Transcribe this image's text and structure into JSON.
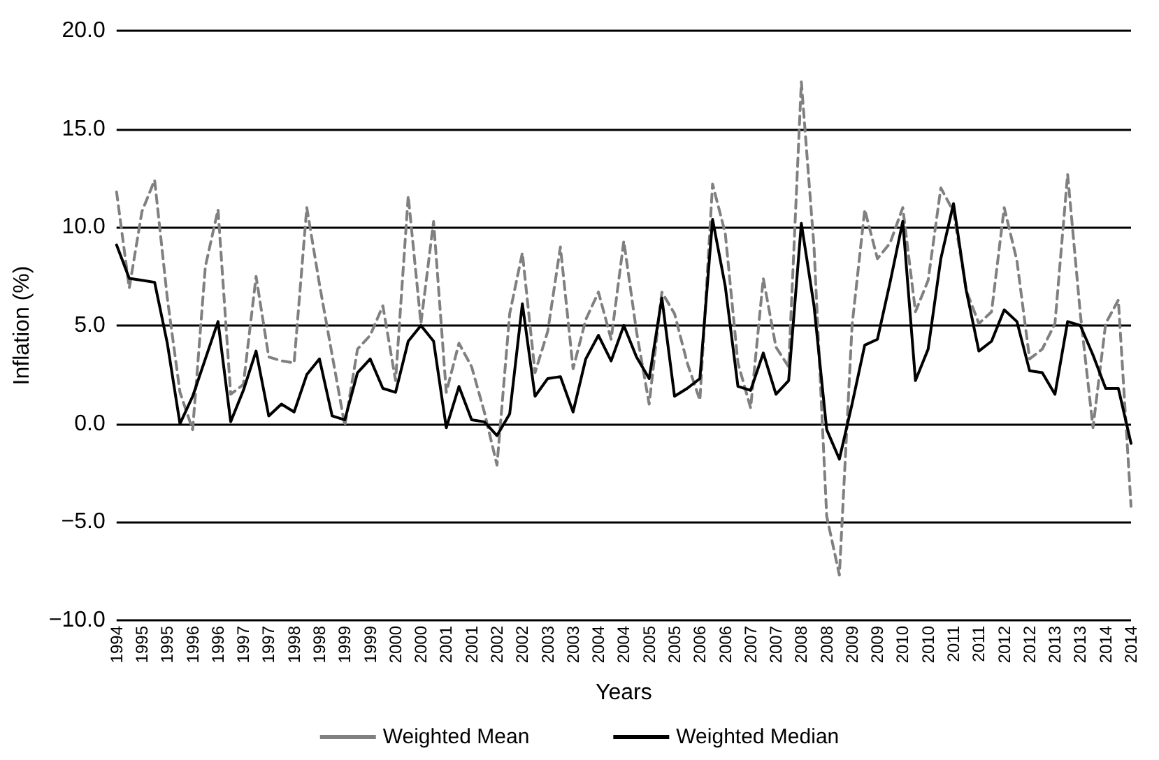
{
  "chart_data": {
    "type": "line",
    "xlabel": "Years",
    "ylabel": "Inflation (%)",
    "categories": [
      "1994",
      null,
      "1995",
      null,
      "1995",
      null,
      "1996",
      null,
      "1996",
      null,
      "1997",
      null,
      "1997",
      null,
      "1998",
      null,
      "1998",
      null,
      "1999",
      null,
      "1999",
      null,
      "2000",
      null,
      "2000",
      null,
      "2001",
      null,
      "2001",
      null,
      "2002",
      null,
      "2002",
      null,
      "2003",
      null,
      "2003",
      null,
      "2004",
      null,
      "2004",
      null,
      "2005",
      null,
      "2005",
      null,
      "2006",
      null,
      "2006",
      null,
      "2007",
      null,
      "2007",
      null,
      "2008",
      null,
      "2008",
      null,
      "2009",
      null,
      "2009",
      null,
      "2010",
      null,
      "2010",
      null,
      "2011",
      null,
      "2011",
      null,
      "2012",
      null,
      "2012",
      null,
      "2013",
      null,
      "2013",
      null,
      "2014",
      null,
      "2014"
    ],
    "series": [
      {
        "name": "Weighted Mean",
        "color": "#808080",
        "line_style": "dashed",
        "values": [
          11.8,
          6.9,
          10.8,
          12.4,
          6.4,
          1.6,
          -0.3,
          8.0,
          10.9,
          1.5,
          2.0,
          7.5,
          3.4,
          3.2,
          3.1,
          11.0,
          7.1,
          3.5,
          -0.1,
          3.8,
          4.5,
          6.0,
          2.2,
          11.6,
          5.1,
          10.3,
          1.6,
          4.1,
          2.9,
          0.6,
          -2.1,
          5.6,
          8.7,
          2.6,
          4.7,
          9.0,
          2.8,
          5.3,
          6.7,
          4.3,
          9.3,
          4.7,
          1.0,
          6.7,
          5.6,
          3.1,
          1.2,
          12.2,
          9.7,
          3.1,
          0.8,
          7.4,
          3.9,
          2.9,
          17.4,
          9.0,
          -4.7,
          -7.7,
          5.0,
          10.9,
          8.4,
          9.2,
          11.0,
          5.7,
          7.3,
          12.0,
          10.8,
          6.8,
          5.1,
          5.7,
          11.0,
          8.3,
          3.3,
          3.8,
          5.1,
          12.7,
          5.6,
          -0.2,
          5.1,
          6.3,
          -4.2
        ]
      },
      {
        "name": "Weighted Median",
        "color": "#000000",
        "line_style": "solid",
        "values": [
          9.1,
          7.4,
          7.3,
          7.2,
          4.1,
          0.0,
          1.4,
          3.3,
          5.2,
          0.1,
          1.7,
          3.7,
          0.4,
          1.0,
          0.6,
          2.5,
          3.3,
          0.4,
          0.2,
          2.6,
          3.3,
          1.8,
          1.6,
          4.2,
          5.0,
          4.2,
          -0.2,
          1.9,
          0.2,
          0.1,
          -0.6,
          0.5,
          6.1,
          1.4,
          2.3,
          2.4,
          0.6,
          3.3,
          4.5,
          3.2,
          5.0,
          3.4,
          2.3,
          6.4,
          1.4,
          1.8,
          2.3,
          10.4,
          7.0,
          1.9,
          1.7,
          3.6,
          1.5,
          2.2,
          10.2,
          6.0,
          -0.3,
          -1.8,
          1.0,
          4.0,
          4.3,
          7.2,
          10.3,
          2.2,
          3.8,
          8.4,
          11.2,
          6.8,
          3.7,
          4.2,
          5.8,
          5.2,
          2.7,
          2.6,
          1.5,
          5.2,
          5.0,
          3.5,
          1.8,
          1.8,
          -1.0
        ]
      }
    ],
    "ylim": [
      -10,
      20
    ],
    "yticks": [
      {
        "value": -10,
        "label": "−10.0"
      },
      {
        "value": -5,
        "label": "−5.0"
      },
      {
        "value": 0,
        "label": "0.0"
      },
      {
        "value": 5,
        "label": "5.0"
      },
      {
        "value": 10,
        "label": "10.0"
      },
      {
        "value": 15,
        "label": "15.0"
      },
      {
        "value": 20,
        "label": "20.0"
      }
    ],
    "grid": "y",
    "legend": "bottom",
    "marker": "none"
  }
}
